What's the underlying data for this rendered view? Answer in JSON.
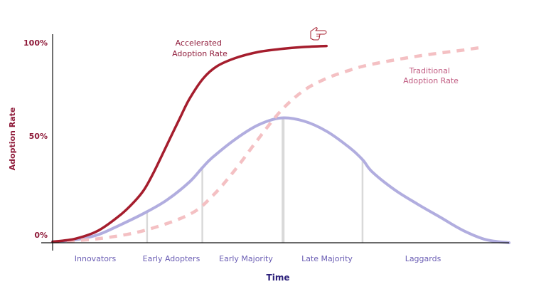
{
  "chart_data": {
    "type": "line",
    "xlabel": "Time",
    "ylabel": "Adoption Rate",
    "y_ticks": [
      "0%",
      "50%",
      "100%"
    ],
    "y_tick_values": [
      0,
      50,
      100
    ],
    "ylim": [
      0,
      100
    ],
    "xlim": [
      0,
      100
    ],
    "segments": [
      "Innovators",
      "Early Adopters",
      "Early Majority",
      "Late Majority",
      "Laggards"
    ],
    "segment_boundaries": [
      20.7,
      32.8,
      50.5,
      67.9
    ],
    "bell_curve": {
      "color": "#b1addf",
      "x": [
        0,
        5,
        10,
        15,
        20,
        25,
        30,
        32.8,
        35,
        40,
        45,
        50,
        55,
        60,
        65,
        67.9,
        70,
        75,
        80,
        85,
        90,
        95,
        100
      ],
      "y": [
        0.5,
        1.5,
        4,
        9,
        14.5,
        21,
        30,
        37,
        42,
        51,
        58,
        61.5,
        60,
        55,
        47,
        41,
        35,
        26,
        19,
        12.5,
        6,
        1.5,
        0
      ]
    },
    "series": [
      {
        "name": "Accelerated Adoption Rate",
        "color": "#a51d2d",
        "style": "solid",
        "x": [
          0,
          5,
          10,
          15,
          18,
          20,
          22,
          25,
          28,
          30,
          33,
          36,
          40,
          45,
          50,
          55,
          60
        ],
        "y": [
          0.5,
          2,
          6,
          14,
          20.5,
          26,
          34,
          48,
          62,
          71,
          81,
          87,
          91,
          94,
          95.5,
          96.5,
          97
        ]
      },
      {
        "name": "Traditional Adoption Rate",
        "color": "#f4c0c3",
        "style": "dashed",
        "x": [
          0,
          10,
          20,
          30,
          35,
          40,
          45,
          50,
          55,
          60,
          65,
          70,
          80,
          90,
          94.5
        ],
        "y": [
          0.5,
          2,
          6,
          14,
          23,
          36,
          51,
          65,
          75,
          81,
          85,
          88,
          92,
          95,
          96.5
        ]
      }
    ],
    "grid": false,
    "colors": {
      "axis": "#111111",
      "ylabel": "#8f1b3a",
      "ytick": "#8f1b3a",
      "xlabel": "#2b1f7a",
      "segment": "#6b5eb4",
      "accelerated_label": "#8f1b3a",
      "traditional_label": "#c05a80",
      "divider": "#d9d9d9"
    }
  },
  "annotations": {
    "accelerated": [
      "Accelerated",
      "Adoption Rate"
    ],
    "traditional": [
      "Traditional",
      "Adoption Rate"
    ]
  },
  "cursor_icon": "hand-pointer-icon"
}
